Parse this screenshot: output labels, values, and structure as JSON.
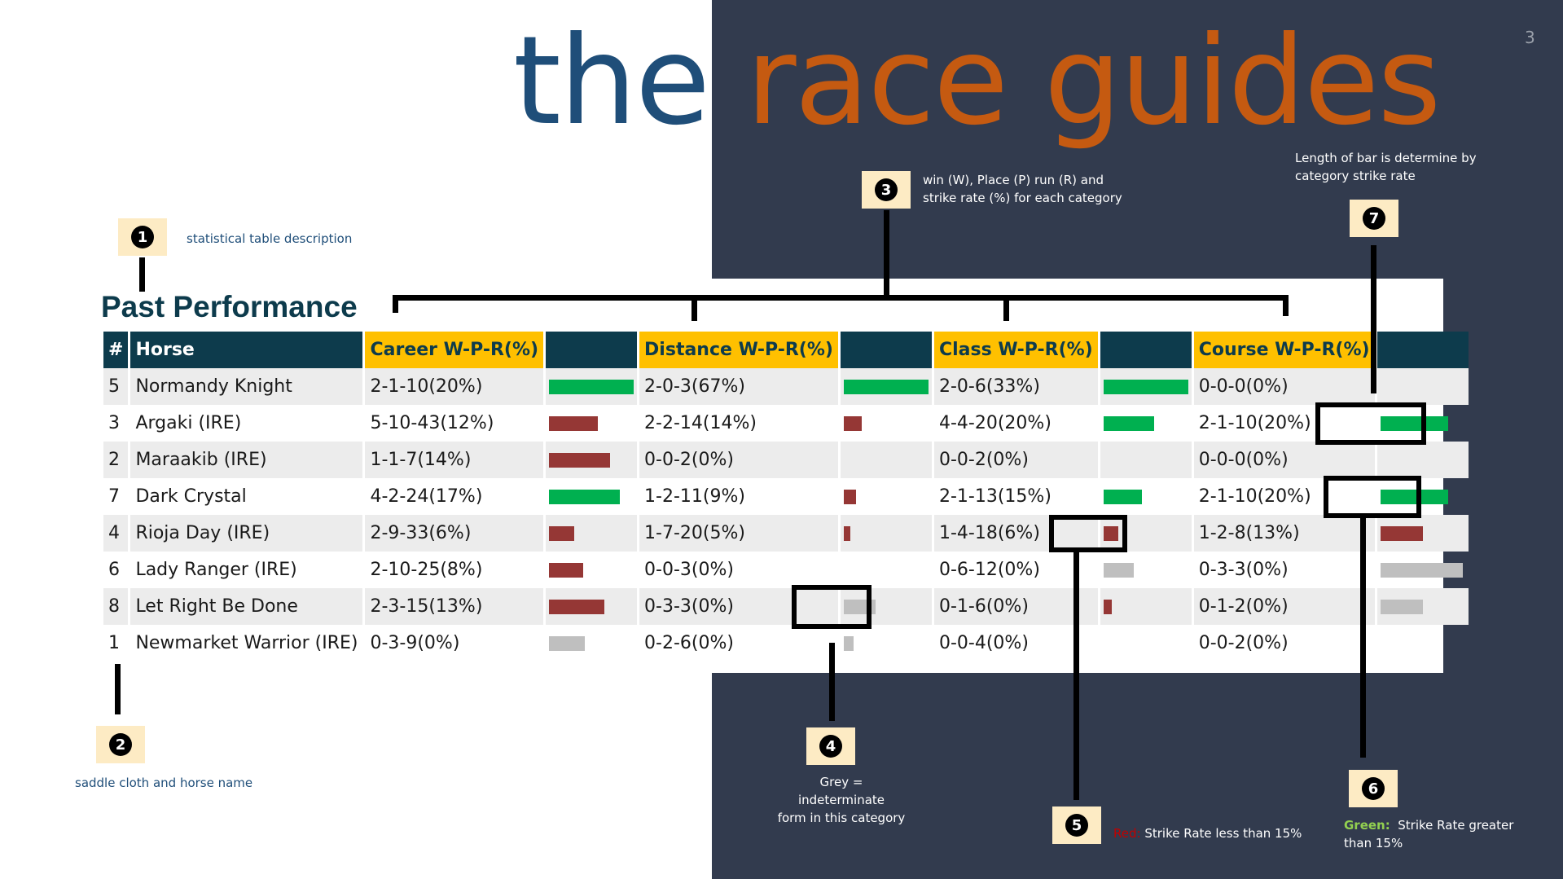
{
  "logo": {
    "the": "the",
    "race_guides": "race guides"
  },
  "page_number": "3",
  "table": {
    "title": "Past Performance",
    "headers": {
      "num": "#",
      "horse": "Horse",
      "career": "Career W-P-R(%)",
      "distance": "Distance W-P-R(%)",
      "class": "Class W-P-R(%)",
      "course": "Course W-P-R(%)"
    },
    "rows": [
      {
        "num": "5",
        "horse": "Normandy Knight",
        "career": "2-1-10(20%)",
        "distance": "2-0-3(67%)",
        "class": "2-0-6(33%)",
        "course": "0-0-0(0%)"
      },
      {
        "num": "3",
        "horse": "Argaki (IRE)",
        "career": "5-10-43(12%)",
        "distance": "2-2-14(14%)",
        "class": "4-4-20(20%)",
        "course": "2-1-10(20%)"
      },
      {
        "num": "2",
        "horse": "Maraakib (IRE)",
        "career": "1-1-7(14%)",
        "distance": "0-0-2(0%)",
        "class": "0-0-2(0%)",
        "course": "0-0-0(0%)"
      },
      {
        "num": "7",
        "horse": "Dark Crystal",
        "career": "4-2-24(17%)",
        "distance": "1-2-11(9%)",
        "class": "2-1-13(15%)",
        "course": "2-1-10(20%)"
      },
      {
        "num": "4",
        "horse": "Rioja Day (IRE)",
        "career": "2-9-33(6%)",
        "distance": "1-7-20(5%)",
        "class": "1-4-18(6%)",
        "course": "1-2-8(13%)"
      },
      {
        "num": "6",
        "horse": "Lady Ranger (IRE)",
        "career": "2-10-25(8%)",
        "distance": "0-0-3(0%)",
        "class": "0-6-12(0%)",
        "course": "0-3-3(0%)"
      },
      {
        "num": "8",
        "horse": "Let Right Be Done",
        "career": "2-3-15(13%)",
        "distance": "0-3-3(0%)",
        "class": "0-1-6(0%)",
        "course": "0-1-2(0%)"
      },
      {
        "num": "1",
        "horse": "Newmarket Warrior (IRE)",
        "career": "0-3-9(0%)",
        "distance": "0-2-6(0%)",
        "class": "0-0-4(0%)",
        "course": "0-0-2(0%)"
      }
    ],
    "bars": [
      {
        "career": [
          1.0,
          "green"
        ],
        "distance": [
          1.0,
          "green"
        ],
        "class": [
          1.0,
          "green"
        ],
        "course": null
      },
      {
        "career": [
          0.58,
          "red"
        ],
        "distance": [
          0.21,
          "red"
        ],
        "class": [
          0.6,
          "green"
        ],
        "course": [
          0.8,
          "green"
        ]
      },
      {
        "career": [
          0.72,
          "red"
        ],
        "distance": null,
        "class": null,
        "course": null
      },
      {
        "career": [
          0.84,
          "green"
        ],
        "distance": [
          0.14,
          "red"
        ],
        "class": [
          0.45,
          "green"
        ],
        "course": [
          0.8,
          "green"
        ]
      },
      {
        "career": [
          0.3,
          "red"
        ],
        "distance": [
          0.08,
          "red"
        ],
        "class": [
          0.18,
          "red"
        ],
        "course": [
          0.5,
          "red"
        ]
      },
      {
        "career": [
          0.4,
          "red"
        ],
        "distance": null,
        "class": [
          0.36,
          "grey"
        ],
        "course": [
          0.98,
          "grey"
        ]
      },
      {
        "career": [
          0.65,
          "red"
        ],
        "distance": [
          0.38,
          "grey"
        ],
        "class": [
          0.1,
          "red"
        ],
        "course": [
          0.5,
          "grey"
        ]
      },
      {
        "career": [
          0.42,
          "grey"
        ],
        "distance": [
          0.12,
          "grey"
        ],
        "class": null,
        "course": null
      }
    ]
  },
  "callouts": {
    "c1": {
      "num": "1",
      "text": "statistical table description"
    },
    "c2": {
      "num": "2",
      "text": "saddle cloth and horse name"
    },
    "c3": {
      "num": "3",
      "text_line1": "win (W), Place (P) run (R) and",
      "text_line2": "strike rate (%) for each category"
    },
    "c4": {
      "num": "4",
      "text_line1": "Grey = indeterminate",
      "text_line2": "form in this category"
    },
    "c5": {
      "num": "5",
      "label": "Red:",
      "text": "Strike Rate less than 15%"
    },
    "c6": {
      "num": "6",
      "label": "Green:",
      "text_line1": "Strike Rate greater",
      "text_line2": "than 15%"
    },
    "c7": {
      "num": "7",
      "text_line1": "Length of bar is determine by",
      "text_line2": "category strike rate"
    }
  },
  "colors": {
    "dark_panel": "#323b4e",
    "header_teal": "#0d3b4c",
    "header_yellow": "#ffc000",
    "green": "#00b050",
    "red": "#953735",
    "grey": "#bfbfbf",
    "logo_blue": "#1f4e79",
    "logo_orange": "#c55a11"
  }
}
